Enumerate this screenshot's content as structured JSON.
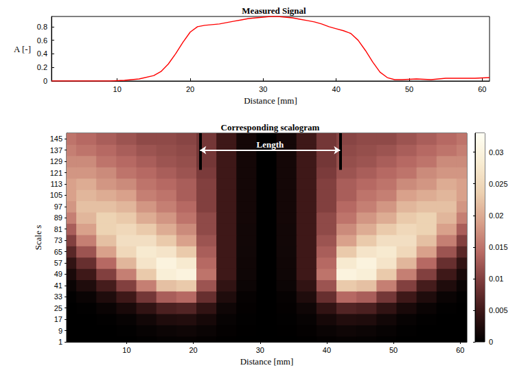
{
  "chart_data": [
    {
      "type": "line",
      "title": "Measured Signal",
      "xlabel": "Distance [mm]",
      "ylabel": "A [-]",
      "color": "#ff0000",
      "grid": false,
      "x": [
        1,
        3,
        5,
        7,
        9,
        11,
        13,
        15,
        16,
        17,
        18,
        19,
        20,
        21,
        22,
        23,
        24,
        25,
        26,
        27,
        28,
        29,
        30,
        31,
        32,
        33,
        34,
        35,
        36,
        37,
        38,
        39,
        40,
        41,
        42,
        43,
        44,
        45,
        46,
        47,
        48,
        49,
        51,
        53,
        55,
        57,
        59,
        61
      ],
      "values": [
        0,
        0,
        0,
        0,
        0,
        0.01,
        0.03,
        0.08,
        0.14,
        0.25,
        0.4,
        0.57,
        0.72,
        0.8,
        0.82,
        0.83,
        0.84,
        0.86,
        0.88,
        0.9,
        0.92,
        0.93,
        0.94,
        0.95,
        0.95,
        0.94,
        0.93,
        0.91,
        0.89,
        0.87,
        0.84,
        0.8,
        0.77,
        0.74,
        0.7,
        0.6,
        0.45,
        0.28,
        0.13,
        0.05,
        0.02,
        0.02,
        0.03,
        0.02,
        0.04,
        0.04,
        0.04,
        0.05
      ],
      "xlim": [
        1,
        61
      ],
      "xticks": [
        10,
        20,
        30,
        40,
        50,
        60
      ],
      "ylim": [
        0,
        0.95
      ],
      "yticks": [
        0,
        0.2,
        0.4,
        0.6,
        0.8
      ]
    },
    {
      "type": "heatmap",
      "title": "Corresponding scalogram",
      "xlabel": "Distance [mm]",
      "ylabel": "Scale s",
      "grid": false,
      "x": [
        1,
        4,
        7,
        10,
        13,
        16,
        19,
        22,
        25,
        28,
        31,
        34,
        37,
        40,
        43,
        46,
        49,
        52,
        55,
        58,
        61
      ],
      "y": [
        1,
        9,
        17,
        25,
        33,
        41,
        49,
        57,
        65,
        73,
        81,
        89,
        97,
        105,
        113,
        121,
        129,
        137,
        145
      ],
      "z": [
        [
          0,
          0,
          0,
          0,
          0.0002,
          0.0004,
          0.0005,
          0.0003,
          0.0001,
          0,
          0,
          0,
          0.0001,
          0.0003,
          0.0005,
          0.0004,
          0.0002,
          0,
          0,
          0,
          0
        ],
        [
          0,
          0,
          0,
          0.0002,
          0.0006,
          0.001,
          0.0012,
          0.0008,
          0.0003,
          0.0001,
          0,
          0.0001,
          0.0003,
          0.0008,
          0.0012,
          0.001,
          0.0006,
          0.0002,
          0,
          0,
          0
        ],
        [
          0,
          0,
          0.0002,
          0.0006,
          0.0015,
          0.0025,
          0.0028,
          0.0018,
          0.0006,
          0.0002,
          0,
          0.0002,
          0.0006,
          0.0018,
          0.0028,
          0.0025,
          0.0015,
          0.0006,
          0.0002,
          0,
          0
        ],
        [
          0,
          0.0002,
          0.0008,
          0.002,
          0.004,
          0.006,
          0.0065,
          0.004,
          0.0012,
          0.0003,
          0,
          0.0003,
          0.0012,
          0.004,
          0.0065,
          0.006,
          0.004,
          0.002,
          0.0008,
          0.0002,
          0
        ],
        [
          0.0002,
          0.0008,
          0.0025,
          0.005,
          0.009,
          0.013,
          0.014,
          0.008,
          0.0025,
          0.0005,
          0,
          0.0005,
          0.0025,
          0.008,
          0.014,
          0.013,
          0.009,
          0.005,
          0.0025,
          0.0008,
          0.0002
        ],
        [
          0.0008,
          0.0025,
          0.0055,
          0.01,
          0.016,
          0.022,
          0.023,
          0.012,
          0.004,
          0.001,
          0,
          0.001,
          0.004,
          0.012,
          0.023,
          0.022,
          0.016,
          0.01,
          0.0055,
          0.0025,
          0.0008
        ],
        [
          0.002,
          0.005,
          0.01,
          0.016,
          0.023,
          0.029,
          0.03,
          0.015,
          0.005,
          0.0012,
          0,
          0.0012,
          0.005,
          0.015,
          0.03,
          0.029,
          0.023,
          0.016,
          0.01,
          0.005,
          0.002
        ],
        [
          0.004,
          0.008,
          0.014,
          0.021,
          0.027,
          0.03,
          0.028,
          0.014,
          0.005,
          0.0013,
          0,
          0.0013,
          0.005,
          0.014,
          0.028,
          0.03,
          0.027,
          0.021,
          0.014,
          0.008,
          0.004
        ],
        [
          0.007,
          0.012,
          0.019,
          0.025,
          0.028,
          0.027,
          0.023,
          0.013,
          0.005,
          0.0014,
          0,
          0.0014,
          0.005,
          0.013,
          0.023,
          0.027,
          0.028,
          0.025,
          0.019,
          0.012,
          0.007
        ],
        [
          0.01,
          0.016,
          0.022,
          0.026,
          0.026,
          0.023,
          0.019,
          0.012,
          0.005,
          0.0015,
          0,
          0.0015,
          0.005,
          0.012,
          0.019,
          0.023,
          0.026,
          0.026,
          0.022,
          0.016,
          0.01
        ],
        [
          0.013,
          0.019,
          0.024,
          0.025,
          0.023,
          0.02,
          0.017,
          0.011,
          0.005,
          0.0015,
          0,
          0.0015,
          0.005,
          0.011,
          0.017,
          0.02,
          0.023,
          0.025,
          0.024,
          0.019,
          0.013
        ],
        [
          0.016,
          0.021,
          0.024,
          0.023,
          0.02,
          0.018,
          0.015,
          0.011,
          0.005,
          0.0016,
          0,
          0.0016,
          0.005,
          0.011,
          0.015,
          0.018,
          0.02,
          0.023,
          0.024,
          0.021,
          0.016
        ],
        [
          0.018,
          0.022,
          0.022,
          0.021,
          0.018,
          0.016,
          0.014,
          0.01,
          0.005,
          0.0016,
          0,
          0.0016,
          0.005,
          0.01,
          0.014,
          0.016,
          0.018,
          0.021,
          0.022,
          0.022,
          0.018
        ],
        [
          0.019,
          0.021,
          0.02,
          0.019,
          0.016,
          0.015,
          0.013,
          0.01,
          0.005,
          0.0016,
          0,
          0.0016,
          0.005,
          0.01,
          0.013,
          0.015,
          0.016,
          0.019,
          0.02,
          0.021,
          0.019
        ],
        [
          0.019,
          0.02,
          0.018,
          0.017,
          0.015,
          0.014,
          0.013,
          0.01,
          0.005,
          0.0016,
          0,
          0.0016,
          0.005,
          0.01,
          0.013,
          0.014,
          0.015,
          0.017,
          0.018,
          0.02,
          0.019
        ],
        [
          0.018,
          0.018,
          0.017,
          0.015,
          0.014,
          0.013,
          0.012,
          0.0095,
          0.005,
          0.0016,
          0,
          0.0016,
          0.005,
          0.0095,
          0.012,
          0.013,
          0.014,
          0.015,
          0.017,
          0.018,
          0.018
        ],
        [
          0.017,
          0.017,
          0.015,
          0.014,
          0.013,
          0.012,
          0.0115,
          0.009,
          0.005,
          0.0016,
          0,
          0.0016,
          0.005,
          0.009,
          0.0115,
          0.012,
          0.013,
          0.014,
          0.015,
          0.017,
          0.017
        ],
        [
          0.016,
          0.015,
          0.014,
          0.013,
          0.012,
          0.0115,
          0.011,
          0.009,
          0.005,
          0.0016,
          0,
          0.0016,
          0.005,
          0.009,
          0.011,
          0.0115,
          0.012,
          0.013,
          0.014,
          0.015,
          0.016
        ],
        [
          0.015,
          0.014,
          0.013,
          0.012,
          0.011,
          0.011,
          0.0105,
          0.009,
          0.005,
          0.0016,
          0,
          0.0016,
          0.005,
          0.009,
          0.0105,
          0.011,
          0.011,
          0.012,
          0.013,
          0.014,
          0.015
        ]
      ],
      "xlim": [
        1,
        61
      ],
      "xticks": [
        10,
        20,
        30,
        40,
        50,
        60
      ],
      "ylim": [
        1,
        149
      ],
      "yticks": [
        1,
        9,
        17,
        25,
        33,
        41,
        49,
        57,
        65,
        73,
        81,
        89,
        97,
        105,
        113,
        121,
        129,
        137,
        145
      ],
      "colorbar": {
        "range": [
          0,
          0.033
        ],
        "ticks": [
          0,
          0.005,
          0.01,
          0.015,
          0.02,
          0.025,
          0.03
        ]
      },
      "annotation": {
        "text": "Length",
        "x": [
          21,
          42
        ],
        "y": 137,
        "bar": [
          123,
          149
        ]
      }
    }
  ]
}
